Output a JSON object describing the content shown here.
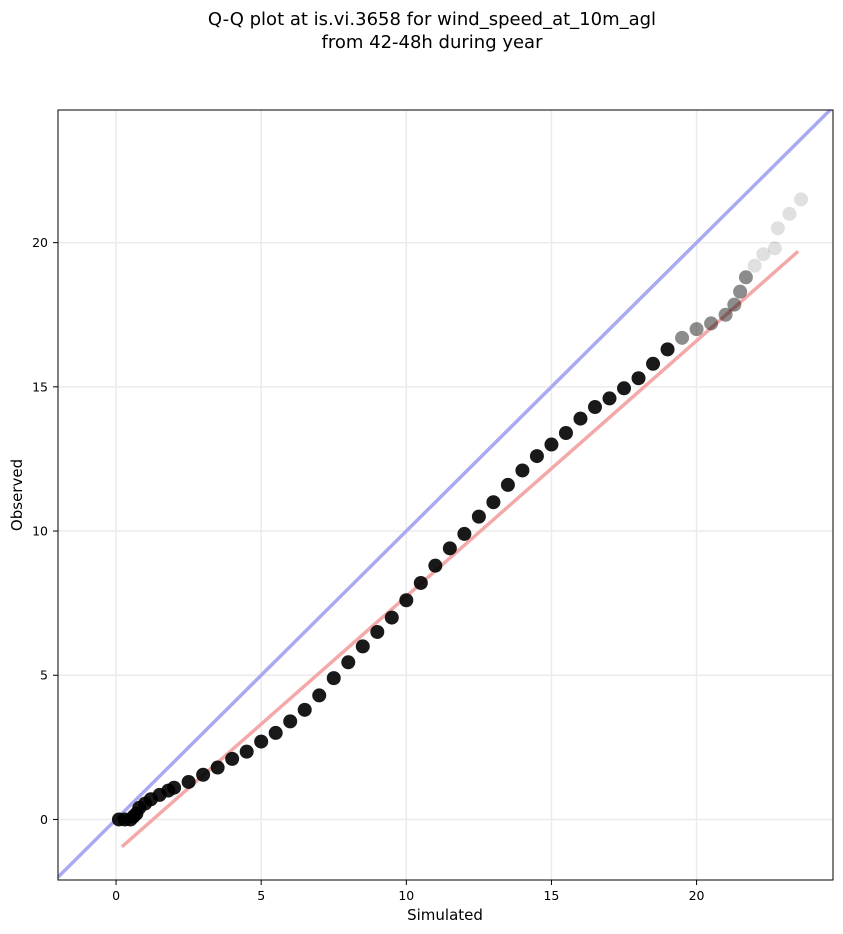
{
  "chart_data": {
    "type": "scatter",
    "title": [
      "Q-Q plot at is.vi.3658 for wind_speed_at_10m_agl",
      "from 42-48h during year"
    ],
    "xlabel": "Simulated",
    "ylabel": "Observed",
    "xlim": [
      -2.0,
      24.7
    ],
    "ylim": [
      -2.1,
      24.6
    ],
    "xticks": [
      0,
      5,
      10,
      15,
      20
    ],
    "yticks": [
      0,
      5,
      10,
      15,
      20
    ],
    "grid": true,
    "reference_line": {
      "name": "identity",
      "color": "#aaaaf2",
      "points": [
        [
          -2.0,
          -2.0
        ],
        [
          24.7,
          24.7
        ]
      ]
    },
    "fit_line": {
      "color": "#f4a9a9",
      "points": [
        [
          0.2,
          -0.95
        ],
        [
          23.5,
          19.7
        ]
      ]
    },
    "point_color": "#000000",
    "quantiles": [
      [
        0.1,
        0.0
      ],
      [
        0.3,
        0.0
      ],
      [
        0.5,
        0.0
      ],
      [
        0.6,
        0.1
      ],
      [
        0.7,
        0.2
      ],
      [
        0.8,
        0.4
      ],
      [
        1.0,
        0.55
      ],
      [
        1.2,
        0.7
      ],
      [
        1.5,
        0.85
      ],
      [
        1.8,
        1.0
      ],
      [
        2.0,
        1.1
      ],
      [
        2.5,
        1.3
      ],
      [
        3.0,
        1.55
      ],
      [
        3.5,
        1.8
      ],
      [
        4.0,
        2.1
      ],
      [
        4.5,
        2.35
      ],
      [
        5.0,
        2.7
      ],
      [
        5.5,
        3.0
      ],
      [
        6.0,
        3.4
      ],
      [
        6.5,
        3.8
      ],
      [
        7.0,
        4.3
      ],
      [
        7.5,
        4.9
      ],
      [
        8.0,
        5.45
      ],
      [
        8.5,
        6.0
      ],
      [
        9.0,
        6.5
      ],
      [
        9.5,
        7.0
      ],
      [
        10.0,
        7.6
      ],
      [
        10.5,
        8.2
      ],
      [
        11.0,
        8.8
      ],
      [
        11.5,
        9.4
      ],
      [
        12.0,
        9.9
      ],
      [
        12.5,
        10.5
      ],
      [
        13.0,
        11.0
      ],
      [
        13.5,
        11.6
      ],
      [
        14.0,
        12.1
      ],
      [
        14.5,
        12.6
      ],
      [
        15.0,
        13.0
      ],
      [
        15.5,
        13.4
      ],
      [
        16.0,
        13.9
      ],
      [
        16.5,
        14.3
      ],
      [
        17.0,
        14.6
      ],
      [
        17.5,
        14.95
      ],
      [
        18.0,
        15.3
      ],
      [
        18.5,
        15.8
      ],
      [
        19.0,
        16.3
      ],
      [
        19.5,
        16.7
      ],
      [
        20.0,
        17.0
      ],
      [
        20.5,
        17.2
      ],
      [
        21.0,
        17.5
      ],
      [
        21.3,
        17.85
      ],
      [
        21.5,
        18.3
      ],
      [
        21.7,
        18.8
      ],
      [
        22.0,
        19.2
      ],
      [
        22.3,
        19.6
      ],
      [
        22.7,
        19.8
      ],
      [
        22.8,
        20.5
      ],
      [
        23.2,
        21.0
      ],
      [
        23.6,
        21.5
      ]
    ]
  }
}
